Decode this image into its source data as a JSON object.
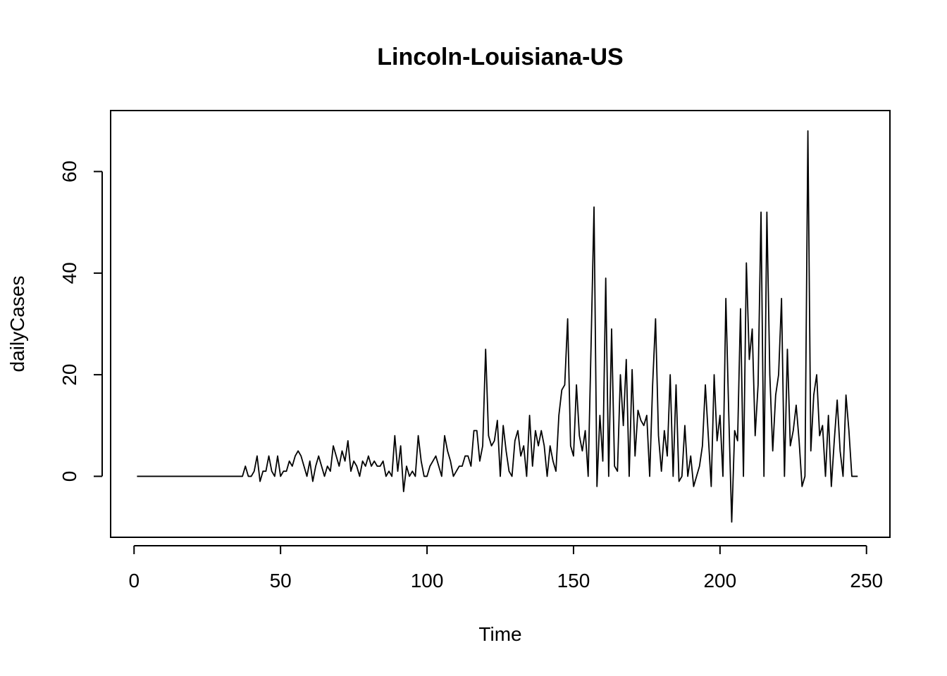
{
  "chart_data": {
    "type": "line",
    "title": "Lincoln-Louisiana-US",
    "xlabel": "Time",
    "ylabel": "dailyCases",
    "xlim": [
      -8,
      258
    ],
    "ylim": [
      -12,
      72
    ],
    "x_ticks": [
      0,
      50,
      100,
      150,
      200,
      250
    ],
    "y_ticks": [
      0,
      20,
      40,
      60
    ],
    "grid": false,
    "line_color": "#000000",
    "x_start": 1,
    "values": [
      0,
      0,
      0,
      0,
      0,
      0,
      0,
      0,
      0,
      0,
      0,
      0,
      0,
      0,
      0,
      0,
      0,
      0,
      0,
      0,
      0,
      0,
      0,
      0,
      0,
      0,
      0,
      0,
      0,
      0,
      0,
      0,
      0,
      0,
      0,
      0,
      0,
      2,
      0,
      0,
      1,
      4,
      -1,
      1,
      1,
      4,
      1,
      0,
      4,
      0,
      1,
      1,
      3,
      2,
      4,
      5,
      4,
      2,
      0,
      3,
      -1,
      2,
      4,
      2,
      0,
      2,
      1,
      6,
      4,
      2,
      5,
      3,
      7,
      1,
      3,
      2,
      0,
      3,
      2,
      4,
      2,
      3,
      2,
      2,
      3,
      0,
      1,
      0,
      8,
      1,
      6,
      -3,
      2,
      0,
      1,
      0,
      8,
      3,
      0,
      0,
      2,
      3,
      4,
      2,
      0,
      8,
      5,
      3,
      0,
      1,
      2,
      2,
      4,
      4,
      2,
      9,
      9,
      3,
      6,
      25,
      8,
      6,
      7,
      11,
      0,
      10,
      5,
      1,
      0,
      7,
      9,
      4,
      6,
      0,
      12,
      2,
      9,
      6,
      9,
      6,
      0,
      6,
      3,
      1,
      12,
      17,
      18,
      31,
      6,
      4,
      18,
      8,
      5,
      9,
      0,
      26,
      53,
      -2,
      12,
      3,
      39,
      0,
      29,
      2,
      1,
      20,
      10,
      23,
      0,
      21,
      4,
      13,
      11,
      10,
      12,
      0,
      18,
      31,
      8,
      1,
      9,
      4,
      20,
      0,
      18,
      -1,
      0,
      10,
      0,
      4,
      -2,
      0,
      2,
      6,
      18,
      8,
      -2,
      20,
      7,
      12,
      0,
      35,
      12,
      -9,
      9,
      7,
      33,
      0,
      42,
      23,
      29,
      8,
      18,
      52,
      0,
      52,
      20,
      5,
      16,
      20,
      35,
      0,
      25,
      6,
      9,
      14,
      7,
      -2,
      0,
      68,
      5,
      16,
      20,
      8,
      10,
      0,
      12,
      -2,
      7,
      15,
      5,
      0,
      16,
      9,
      0,
      0,
      0
    ]
  }
}
